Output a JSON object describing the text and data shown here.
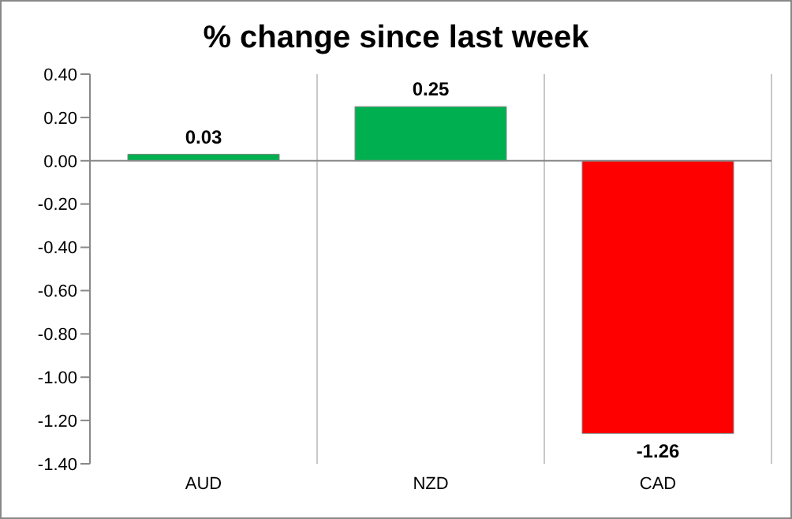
{
  "chart_data": {
    "type": "bar",
    "title": "% change since last week",
    "categories": [
      "AUD",
      "NZD",
      "CAD"
    ],
    "values": [
      0.03,
      0.25,
      -1.26
    ],
    "colors": [
      "#00b050",
      "#00b050",
      "#ff0000"
    ],
    "ylim": [
      -1.4,
      0.4
    ],
    "yticks": [
      {
        "value": 0.4,
        "label": "0.40"
      },
      {
        "value": 0.2,
        "label": "0.20"
      },
      {
        "value": 0,
        "label": "0.00"
      },
      {
        "value": -0.2,
        "label": "-0.20"
      },
      {
        "value": -0.4,
        "label": "-0.40"
      },
      {
        "value": -0.6,
        "label": "-0.60"
      },
      {
        "value": -0.8,
        "label": "-0.80"
      },
      {
        "value": -1.0,
        "label": "-1.00"
      },
      {
        "value": -1.2,
        "label": "-1.20"
      },
      {
        "value": -1.4,
        "label": "-1.40"
      }
    ],
    "grid": "x",
    "legend": false,
    "data_labels": true
  }
}
